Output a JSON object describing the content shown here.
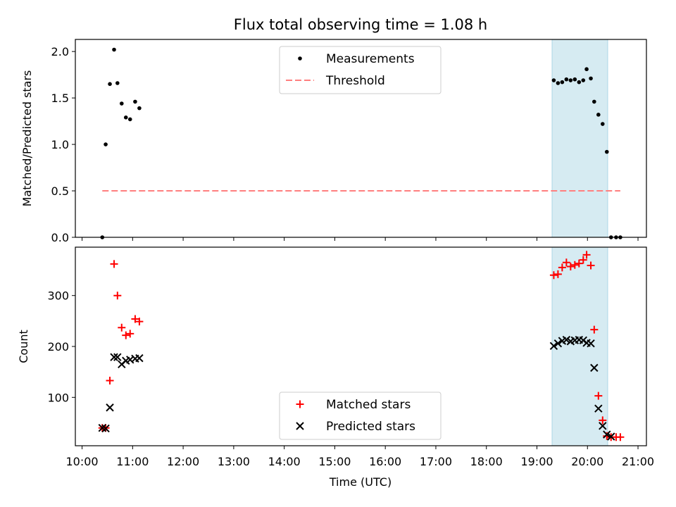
{
  "chart_data": {
    "title": "Flux total observing time = 1.08 h",
    "xlabel": "Time (UTC)",
    "x_unit": "hours UTC",
    "xlim": [
      "09:52",
      "21:10"
    ],
    "x_ticks": [
      "10:00",
      "11:00",
      "12:00",
      "13:00",
      "14:00",
      "15:00",
      "16:00",
      "17:00",
      "18:00",
      "19:00",
      "20:00",
      "21:00"
    ],
    "shaded_region": {
      "x": [
        "19:18",
        "20:24"
      ],
      "color": "#add8e6"
    },
    "panels": [
      {
        "type": "scatter",
        "ylabel": "Matched/Predicted stars",
        "ylim": [
          0,
          2.13
        ],
        "yticks": [
          "0.0",
          "0.5",
          "1.0",
          "1.5",
          "2.0"
        ],
        "legend_position": "upper center",
        "series": [
          {
            "name": "Measurements",
            "marker": "dot",
            "color": "#000000",
            "points": [
              [
                "10:24",
                0.0
              ],
              [
                "10:28",
                1.0
              ],
              [
                "10:33",
                1.65
              ],
              [
                "10:38",
                2.02
              ],
              [
                "10:42",
                1.66
              ],
              [
                "10:47",
                1.44
              ],
              [
                "10:52",
                1.29
              ],
              [
                "10:57",
                1.27
              ],
              [
                "11:03",
                1.46
              ],
              [
                "11:08",
                1.39
              ],
              [
                "19:20",
                1.69
              ],
              [
                "19:25",
                1.66
              ],
              [
                "19:30",
                1.67
              ],
              [
                "19:35",
                1.7
              ],
              [
                "19:40",
                1.69
              ],
              [
                "19:45",
                1.7
              ],
              [
                "19:50",
                1.67
              ],
              [
                "19:55",
                1.69
              ],
              [
                "19:59",
                1.81
              ],
              [
                "20:04",
                1.71
              ],
              [
                "20:08",
                1.46
              ],
              [
                "20:13",
                1.32
              ],
              [
                "20:18",
                1.22
              ],
              [
                "20:23",
                0.92
              ],
              [
                "20:28",
                0.0
              ],
              [
                "20:34",
                0.0
              ],
              [
                "20:39",
                0.0
              ]
            ]
          },
          {
            "name": "Threshold",
            "style": "dashed",
            "color": "#ff7f7f",
            "points": [
              [
                "10:24",
                0.5
              ],
              [
                "20:39",
                0.5
              ]
            ]
          }
        ]
      },
      {
        "type": "scatter",
        "ylabel": "Count",
        "ylim": [
          5,
          395
        ],
        "yticks": [
          "100",
          "200",
          "300"
        ],
        "legend_position": "lower center",
        "series": [
          {
            "name": "Matched stars",
            "marker": "plus",
            "color": "#ff0000",
            "points": [
              [
                "10:24",
                40
              ],
              [
                "10:28",
                40
              ],
              [
                "10:33",
                133
              ],
              [
                "10:38",
                362
              ],
              [
                "10:42",
                300
              ],
              [
                "10:47",
                237
              ],
              [
                "10:52",
                222
              ],
              [
                "10:57",
                225
              ],
              [
                "11:03",
                254
              ],
              [
                "11:08",
                249
              ],
              [
                "19:20",
                340
              ],
              [
                "19:25",
                342
              ],
              [
                "19:30",
                355
              ],
              [
                "19:35",
                365
              ],
              [
                "19:40",
                357
              ],
              [
                "19:45",
                360
              ],
              [
                "19:50",
                363
              ],
              [
                "19:55",
                370
              ],
              [
                "19:59",
                380
              ],
              [
                "20:04",
                359
              ],
              [
                "20:08",
                233
              ],
              [
                "20:13",
                103
              ],
              [
                "20:18",
                55
              ],
              [
                "20:23",
                24
              ],
              [
                "20:28",
                22
              ],
              [
                "20:34",
                22
              ],
              [
                "20:39",
                22
              ]
            ]
          },
          {
            "name": "Predicted stars",
            "marker": "x",
            "color": "#000000",
            "points": [
              [
                "10:24",
                40
              ],
              [
                "10:28",
                39
              ],
              [
                "10:33",
                80
              ],
              [
                "10:38",
                179
              ],
              [
                "10:42",
                179
              ],
              [
                "10:47",
                165
              ],
              [
                "10:52",
                172
              ],
              [
                "10:57",
                174
              ],
              [
                "11:03",
                176
              ],
              [
                "11:08",
                177
              ],
              [
                "19:20",
                201
              ],
              [
                "19:25",
                206
              ],
              [
                "19:30",
                211
              ],
              [
                "19:35",
                213
              ],
              [
                "19:40",
                210
              ],
              [
                "19:45",
                212
              ],
              [
                "19:50",
                213
              ],
              [
                "19:55",
                212
              ],
              [
                "19:59",
                207
              ],
              [
                "20:04",
                206
              ],
              [
                "20:08",
                158
              ],
              [
                "20:13",
                78
              ],
              [
                "20:18",
                44
              ],
              [
                "20:23",
                27
              ],
              [
                "20:28",
                23
              ]
            ]
          }
        ]
      }
    ]
  }
}
